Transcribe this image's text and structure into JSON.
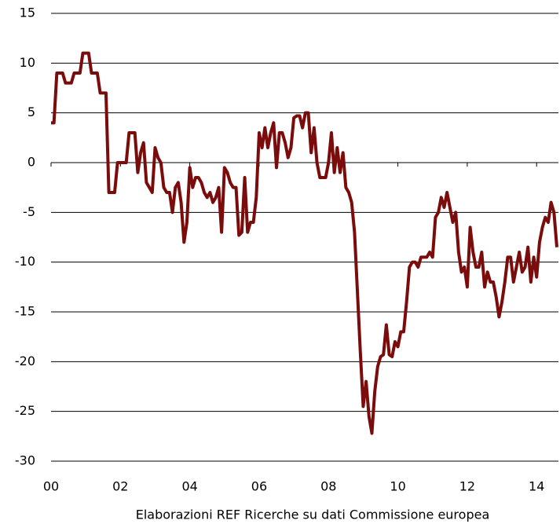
{
  "chart_data": {
    "type": "line",
    "note": "Elaborazioni REF Ricerche su dati Commissione europea",
    "categories": [
      "00",
      null,
      null,
      null,
      null,
      null,
      null,
      null,
      null,
      null,
      null,
      null,
      null,
      null,
      null,
      null,
      null,
      null,
      null,
      null,
      null,
      null,
      null,
      null,
      "02",
      null,
      null,
      null,
      null,
      null,
      null,
      null,
      null,
      null,
      null,
      null,
      null,
      null,
      null,
      null,
      null,
      null,
      null,
      null,
      null,
      null,
      null,
      null,
      "04",
      null,
      null,
      null,
      null,
      null,
      null,
      null,
      null,
      null,
      null,
      null,
      null,
      null,
      null,
      null,
      null,
      null,
      null,
      null,
      null,
      null,
      null,
      null,
      "06",
      null,
      null,
      null,
      null,
      null,
      null,
      null,
      null,
      null,
      null,
      null,
      null,
      null,
      null,
      null,
      null,
      null,
      null,
      null,
      null,
      null,
      null,
      null,
      "08",
      null,
      null,
      null,
      null,
      null,
      null,
      null,
      null,
      null,
      null,
      null,
      null,
      null,
      null,
      null,
      null,
      null,
      null,
      null,
      null,
      null,
      null,
      null,
      "10",
      null,
      null,
      null,
      null,
      null,
      null,
      null,
      null,
      null,
      null,
      null,
      null,
      null,
      null,
      null,
      null,
      null,
      null,
      null,
      null,
      null,
      null,
      null,
      "12",
      null,
      null,
      null,
      null,
      null,
      null,
      null,
      null,
      null,
      null,
      null,
      null,
      null,
      null,
      null,
      null,
      null,
      null,
      null,
      null,
      null,
      null,
      null,
      "14",
      null,
      null,
      null,
      null,
      null,
      null,
      null
    ],
    "series": [
      {
        "color": "#7b0c0c",
        "values": [
          4,
          4,
          9,
          9,
          9,
          8,
          8,
          8,
          9,
          9,
          9,
          11,
          11,
          11,
          9,
          9,
          9,
          7,
          7,
          7,
          -3,
          -3,
          -3,
          0,
          0,
          0,
          0,
          3,
          3,
          3,
          -1,
          1,
          2,
          -2,
          -2.5,
          -3,
          1.5,
          0.5,
          0,
          -2.5,
          -3,
          -3,
          -5,
          -2.5,
          -2,
          -4,
          -8,
          -6,
          -0.5,
          -2.5,
          -1.5,
          -1.5,
          -2,
          -3,
          -3.5,
          -3,
          -4,
          -3.5,
          -2.5,
          -7,
          -0.5,
          -1,
          -2,
          -2.5,
          -2.5,
          -7.3,
          -7,
          -1.5,
          -7,
          -6,
          -6,
          -3.5,
          3,
          1.5,
          3.5,
          1.5,
          3,
          4,
          -0.5,
          3,
          3,
          2,
          0.5,
          1.5,
          4.5,
          4.7,
          4.7,
          3.5,
          5,
          5,
          1,
          3.5,
          0,
          -1.5,
          -1.5,
          -1.5,
          0,
          3,
          -1,
          1.5,
          -1,
          1,
          -2.5,
          -3,
          -4,
          -7,
          -13,
          -19,
          -24.5,
          -22,
          -25.5,
          -27.2,
          -23,
          -20.5,
          -19.5,
          -19.3,
          -16.3,
          -19.3,
          -19.5,
          -18,
          -18.5,
          -17,
          -17,
          -14,
          -10.5,
          -10,
          -10,
          -10.5,
          -9.5,
          -9.5,
          -9.5,
          -9,
          -9.5,
          -5.5,
          -5,
          -3.5,
          -4.5,
          -3,
          -4.5,
          -6,
          -5,
          -9,
          -11,
          -10.5,
          -12.5,
          -6.5,
          -9,
          -10.5,
          -10.5,
          -9,
          -12.5,
          -11,
          -12,
          -12,
          -13.5,
          -15.5,
          -14,
          -12,
          -9.5,
          -9.5,
          -12,
          -10.5,
          -9,
          -11,
          -10.5,
          -8.5,
          -12,
          -9.5,
          -11.5,
          -8,
          -6.5,
          -5.5,
          -6,
          -4,
          -5,
          -8.5
        ]
      }
    ],
    "ylim": [
      -30,
      15
    ],
    "yticks": [
      -30,
      -25,
      -20,
      -15,
      -10,
      -5,
      0,
      5,
      10,
      15
    ],
    "grid": true
  }
}
